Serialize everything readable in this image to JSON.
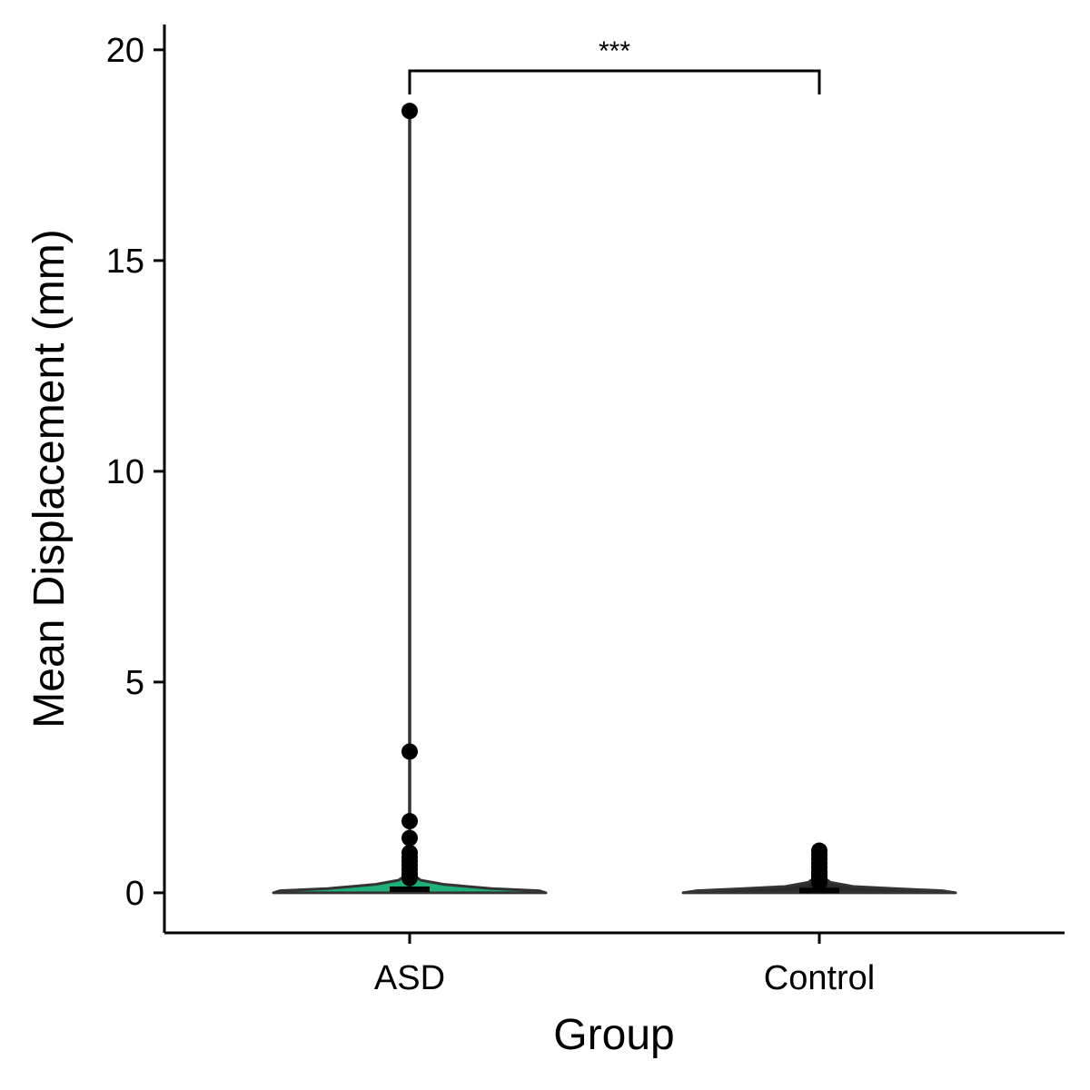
{
  "chart_data": {
    "type": "violin",
    "xlabel": "Group",
    "ylabel": "Mean Displacement (mm)",
    "ylim": [
      -0.95,
      20.6
    ],
    "yticks": [
      0,
      5,
      10,
      15,
      20
    ],
    "categories": [
      "ASD",
      "Control"
    ],
    "significance": {
      "from": "ASD",
      "to": "Control",
      "y": 19.5,
      "label": "***"
    },
    "groups": [
      {
        "name": "ASD",
        "fill": "#1fb079",
        "whisker": [
          0.02,
          18.55
        ],
        "box": [
          0.04,
          0.15
        ],
        "violin_width_profile": [
          [
            0.0,
            1.0
          ],
          [
            0.05,
            0.95
          ],
          [
            0.1,
            0.6
          ],
          [
            0.2,
            0.25
          ],
          [
            0.3,
            0.08
          ],
          [
            0.45,
            0.02
          ],
          [
            18.55,
            0.0
          ]
        ],
        "outliers": [
          18.55,
          3.35,
          1.7,
          1.3,
          0.95,
          0.85,
          0.75,
          0.65,
          0.55,
          0.45,
          0.4,
          0.35
        ]
      },
      {
        "name": "Control",
        "fill": "#2a2a2a",
        "whisker": [
          0.02,
          1.0
        ],
        "box": [
          0.04,
          0.12
        ],
        "violin_width_profile": [
          [
            0.0,
            1.0
          ],
          [
            0.05,
            0.9
          ],
          [
            0.1,
            0.55
          ],
          [
            0.15,
            0.25
          ],
          [
            0.25,
            0.08
          ],
          [
            0.4,
            0.02
          ],
          [
            1.0,
            0.0
          ]
        ],
        "outliers": [
          1.0,
          0.9,
          0.8,
          0.7,
          0.6,
          0.5,
          0.45,
          0.4,
          0.35,
          0.3,
          0.25
        ]
      }
    ]
  }
}
